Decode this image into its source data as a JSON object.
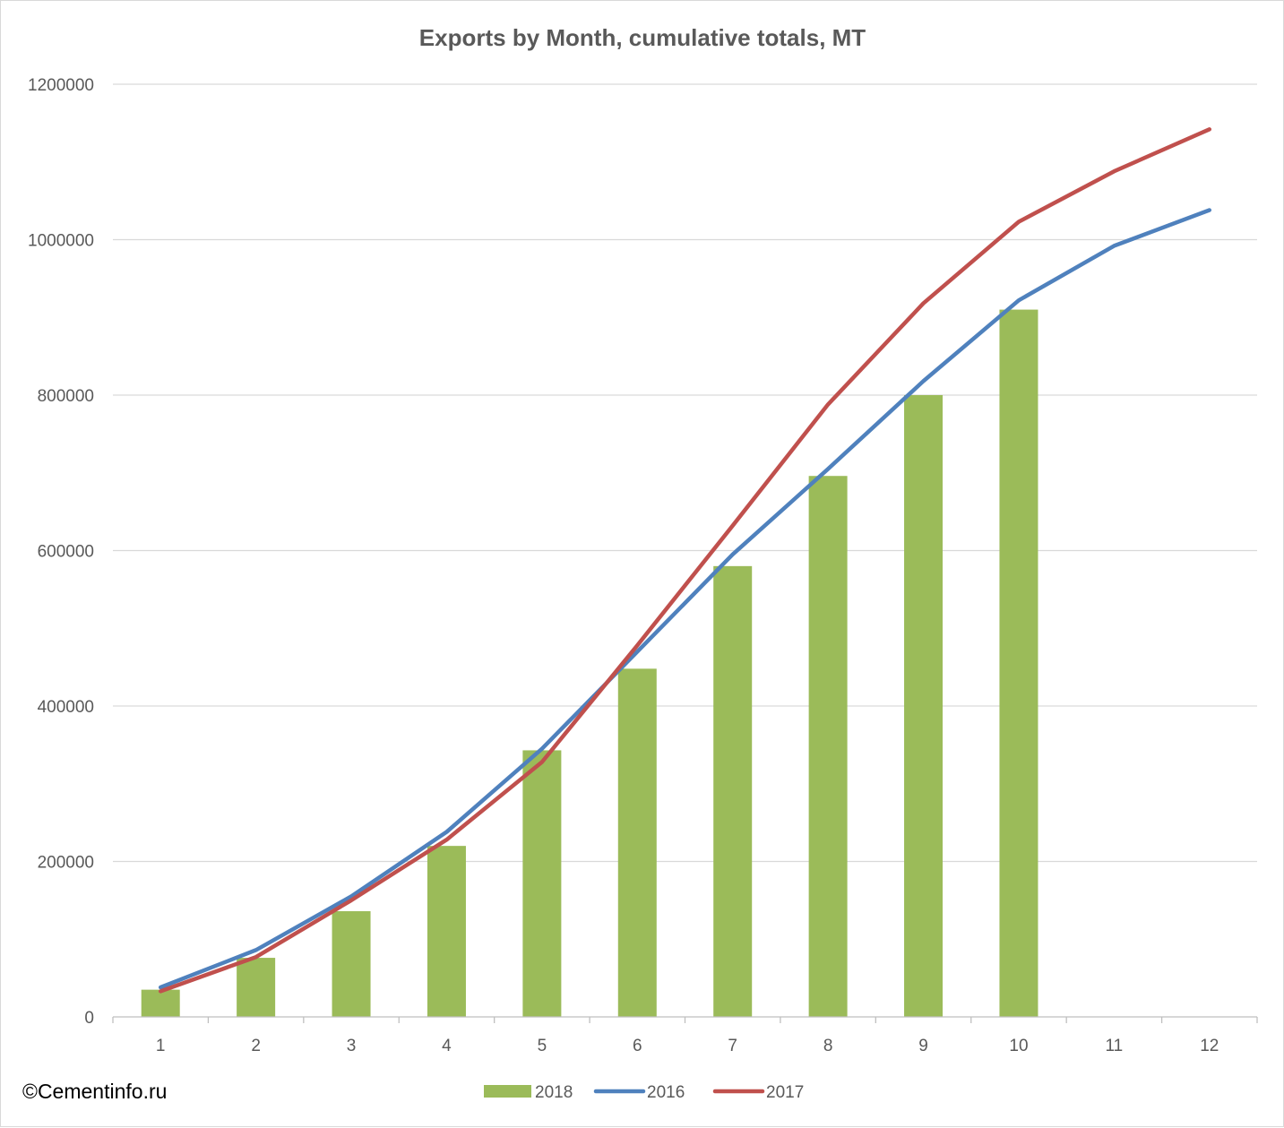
{
  "chart_data": {
    "type": "bar",
    "title": "Exports by Month, cumulative totals, MT",
    "xlabel": "",
    "ylabel": "",
    "categories": [
      "1",
      "2",
      "3",
      "4",
      "5",
      "6",
      "7",
      "8",
      "9",
      "10",
      "11",
      "12"
    ],
    "ylim": [
      0,
      1200000
    ],
    "yticks": [
      "0",
      "200000",
      "400000",
      "600000",
      "800000",
      "1000000",
      "1200000"
    ],
    "grid": true,
    "legend_position": "bottom",
    "series": [
      {
        "name": "2018",
        "type": "bar",
        "color": "#9bbb59",
        "values": [
          35000,
          76000,
          136000,
          220000,
          343000,
          448000,
          580000,
          696000,
          800000,
          910000,
          null,
          null
        ]
      },
      {
        "name": "2016",
        "type": "line",
        "color": "#4f81bd",
        "values": [
          38000,
          86000,
          155000,
          238000,
          345000,
          470000,
          595000,
          705000,
          818000,
          922000,
          992000,
          1038000
        ]
      },
      {
        "name": "2017",
        "type": "line",
        "color": "#c0504d",
        "values": [
          33000,
          77000,
          150000,
          228000,
          328000,
          478000,
          632000,
          788000,
          918000,
          1023000,
          1088000,
          1142000
        ]
      }
    ]
  },
  "copyright": "©Cementinfo.ru"
}
